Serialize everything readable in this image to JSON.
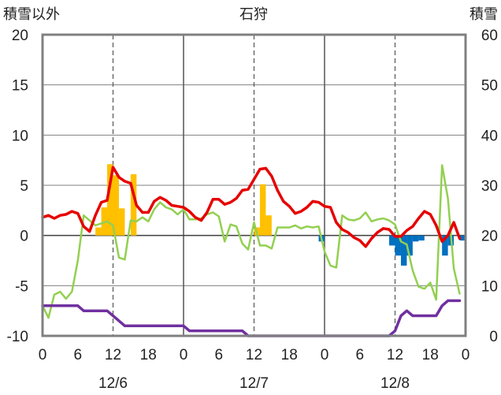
{
  "chart_data": {
    "type": "line",
    "title": "石狩",
    "left_axis_label": "積雪以外",
    "right_axis_label": "積雪",
    "y_left": {
      "min": -10,
      "max": 20,
      "ticks": [
        20,
        15,
        10,
        5,
        0,
        -5,
        -10
      ]
    },
    "y_right": {
      "min": 0,
      "max": 60,
      "ticks": [
        60,
        50,
        40,
        30,
        20,
        10,
        0
      ]
    },
    "x": {
      "min": 0,
      "max": 72,
      "tick_step": 6,
      "tick_labels": [
        "0",
        "6",
        "12",
        "18",
        "0",
        "6",
        "12",
        "18",
        "0",
        "6",
        "12",
        "18",
        "0"
      ]
    },
    "day_labels": [
      {
        "x": 12,
        "label": "12/6"
      },
      {
        "x": 36,
        "label": "12/7"
      },
      {
        "x": 60,
        "label": "12/8"
      }
    ],
    "grid": {
      "dashed_x": [
        12,
        36,
        60
      ],
      "solid_x": [
        24,
        48
      ]
    },
    "colors": {
      "temperature": "#e60000",
      "secondary": "#92d050",
      "snow_depth": "#7030a0",
      "precip_positive": "#ffc000",
      "precip_negative": "#0070c0",
      "frame": "#808080"
    },
    "series": [
      {
        "key": "temperature",
        "axis": "left",
        "points": [
          [
            0,
            1.8
          ],
          [
            1,
            2
          ],
          [
            2,
            1.7
          ],
          [
            3,
            2
          ],
          [
            4,
            2.1
          ],
          [
            5,
            2.4
          ],
          [
            6,
            2.2
          ],
          [
            7,
            0.9
          ],
          [
            8,
            0.4
          ],
          [
            9,
            2
          ],
          [
            10,
            3.3
          ],
          [
            11,
            3.5
          ],
          [
            12,
            6.8
          ],
          [
            13,
            5.8
          ],
          [
            14,
            5.4
          ],
          [
            15,
            5.2
          ],
          [
            16,
            3
          ],
          [
            17,
            2.3
          ],
          [
            18,
            2.3
          ],
          [
            19,
            3.4
          ],
          [
            20,
            3.8
          ],
          [
            21,
            3.5
          ],
          [
            22,
            3
          ],
          [
            23,
            2.9
          ],
          [
            24,
            2.8
          ],
          [
            25,
            2.4
          ],
          [
            26,
            1.8
          ],
          [
            27,
            1.5
          ],
          [
            28,
            2.3
          ],
          [
            29,
            3.6
          ],
          [
            30,
            3.6
          ],
          [
            31,
            3.1
          ],
          [
            32,
            3.3
          ],
          [
            33,
            3.7
          ],
          [
            34,
            4.5
          ],
          [
            35,
            4.6
          ],
          [
            36,
            5.6
          ],
          [
            37,
            6.6
          ],
          [
            38,
            6.7
          ],
          [
            39,
            5.9
          ],
          [
            40,
            4.5
          ],
          [
            41,
            3.4
          ],
          [
            42,
            2.9
          ],
          [
            43,
            2.2
          ],
          [
            44,
            2.4
          ],
          [
            45,
            2.8
          ],
          [
            46,
            3.4
          ],
          [
            47,
            3.3
          ],
          [
            48,
            2.9
          ],
          [
            49,
            2.8
          ],
          [
            50,
            1.3
          ],
          [
            51,
            0.6
          ],
          [
            52,
            0.3
          ],
          [
            53,
            -0.2
          ],
          [
            54,
            -0.5
          ],
          [
            55,
            -1.1
          ],
          [
            56,
            -0.3
          ],
          [
            57,
            0.3
          ],
          [
            58,
            0.7
          ],
          [
            59,
            0.6
          ],
          [
            60,
            -0.1
          ],
          [
            61,
            -0.1
          ],
          [
            62,
            0.5
          ],
          [
            63,
            0.9
          ],
          [
            64,
            1.7
          ],
          [
            65,
            2.4
          ],
          [
            66,
            2.1
          ],
          [
            67,
            1
          ],
          [
            68,
            -0.6
          ],
          [
            69,
            0
          ],
          [
            70,
            1.3
          ],
          [
            71,
            -0.3
          ]
        ]
      },
      {
        "key": "secondary",
        "axis": "left",
        "points": [
          [
            0,
            -7
          ],
          [
            1,
            -8.2
          ],
          [
            2,
            -5.9
          ],
          [
            3,
            -5.6
          ],
          [
            4,
            -6.3
          ],
          [
            5,
            -5.6
          ],
          [
            6,
            -2.5
          ],
          [
            7,
            2
          ],
          [
            8,
            1.5
          ],
          [
            9,
            1
          ],
          [
            10,
            1.2
          ],
          [
            11,
            1.4
          ],
          [
            12,
            1
          ],
          [
            13,
            -2.2
          ],
          [
            14,
            -2.4
          ],
          [
            15,
            1.5
          ],
          [
            16,
            1.4
          ],
          [
            17,
            1.8
          ],
          [
            18,
            1.4
          ],
          [
            19,
            2.6
          ],
          [
            20,
            3.3
          ],
          [
            21,
            2.8
          ],
          [
            22,
            2.6
          ],
          [
            23,
            2.1
          ],
          [
            24,
            2.6
          ],
          [
            25,
            1.6
          ],
          [
            26,
            1.6
          ],
          [
            27,
            1.7
          ],
          [
            28,
            2.1
          ],
          [
            29,
            2.3
          ],
          [
            30,
            1.9
          ],
          [
            31,
            -0.6
          ],
          [
            32,
            1.1
          ],
          [
            33,
            0.9
          ],
          [
            34,
            -0.8
          ],
          [
            35,
            -1.4
          ],
          [
            36,
            1.3
          ],
          [
            37,
            -1
          ],
          [
            38,
            -1
          ],
          [
            39,
            -1.3
          ],
          [
            40,
            0.8
          ],
          [
            41,
            0.8
          ],
          [
            42,
            0.8
          ],
          [
            43,
            1
          ],
          [
            44,
            0.7
          ],
          [
            45,
            0.9
          ],
          [
            46,
            0.8
          ],
          [
            47,
            0.9
          ],
          [
            48,
            -1.6
          ],
          [
            49,
            -3
          ],
          [
            50,
            -3.2
          ],
          [
            51,
            2
          ],
          [
            52,
            1.6
          ],
          [
            53,
            1.5
          ],
          [
            54,
            1.7
          ],
          [
            55,
            2.3
          ],
          [
            56,
            1.4
          ],
          [
            57,
            1.6
          ],
          [
            58,
            1.7
          ],
          [
            59,
            1.5
          ],
          [
            60,
            1.1
          ],
          [
            61,
            -0.6
          ],
          [
            62,
            -0.9
          ],
          [
            63,
            -3.5
          ],
          [
            64,
            -5.1
          ],
          [
            65,
            -5.3
          ],
          [
            66,
            -4.7
          ],
          [
            67,
            -6.4
          ],
          [
            68,
            7
          ],
          [
            69,
            3.7
          ],
          [
            70,
            -3.3
          ],
          [
            71,
            -5.8
          ]
        ]
      },
      {
        "key": "snow_depth",
        "axis": "right",
        "points": [
          [
            0,
            6
          ],
          [
            6,
            6
          ],
          [
            7,
            5
          ],
          [
            11,
            5
          ],
          [
            12,
            4
          ],
          [
            13,
            3
          ],
          [
            14,
            2
          ],
          [
            23,
            2
          ],
          [
            24,
            2
          ],
          [
            25,
            1
          ],
          [
            34,
            1
          ],
          [
            35,
            0
          ],
          [
            59,
            0
          ],
          [
            60,
            1
          ],
          [
            61,
            4
          ],
          [
            62,
            5
          ],
          [
            63,
            4
          ],
          [
            67,
            4
          ],
          [
            68,
            6
          ],
          [
            69,
            7
          ],
          [
            71,
            7
          ]
        ]
      }
    ],
    "bars": {
      "axis": "left",
      "positive": [
        [
          10,
          0.8
        ],
        [
          11,
          2.8
        ],
        [
          12,
          7.1
        ],
        [
          13,
          6
        ],
        [
          14,
          2.7
        ],
        [
          16,
          6.1
        ],
        [
          37,
          0.8
        ],
        [
          38,
          5.1
        ],
        [
          39,
          2
        ]
      ],
      "negative": [
        [
          48,
          -0.6
        ],
        [
          60,
          -1
        ],
        [
          61,
          -2
        ],
        [
          62,
          -3
        ],
        [
          63,
          -2
        ],
        [
          64,
          -0.6
        ],
        [
          65,
          -0.5
        ],
        [
          69,
          -2
        ],
        [
          70,
          -1
        ],
        [
          72,
          -0.5
        ]
      ]
    }
  }
}
